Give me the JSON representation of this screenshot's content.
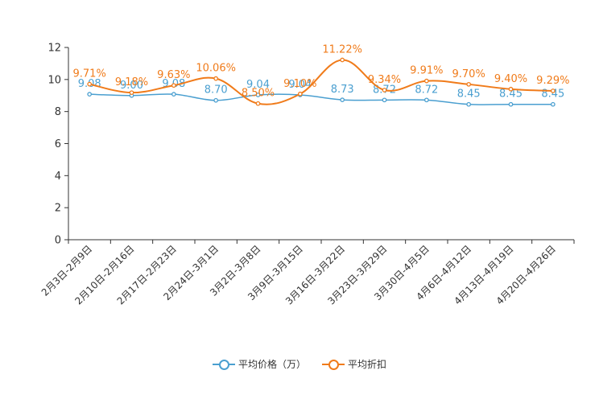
{
  "chart_data": {
    "type": "line",
    "title": "",
    "xlabel": "",
    "ylabel": "",
    "ylim": [
      0,
      12
    ],
    "yticks": [
      0,
      2,
      4,
      6,
      8,
      10,
      12
    ],
    "categories": [
      "2月3日-2月9日",
      "2月10日-2月16日",
      "2月17日-2月23日",
      "2月24日-3月1日",
      "3月2日-3月8日",
      "3月9日-3月15日",
      "3月16日-3月22日",
      "3月23日-3月29日",
      "3月30日-4月5日",
      "4月6日-4月12日",
      "4月13日-4月19日",
      "4月20日-4月26日"
    ],
    "series": [
      {
        "name": "平均价格（万）",
        "color": "#4a9fd0",
        "values": [
          9.08,
          9.0,
          9.08,
          8.7,
          9.04,
          9.04,
          8.73,
          8.72,
          8.72,
          8.45,
          8.45,
          8.45
        ],
        "labels": [
          "9.08",
          "9.00",
          "9.08",
          "8.70",
          "9.04",
          "9.04",
          "8.73",
          "8.72",
          "8.72",
          "8.45",
          "8.45",
          "8.45"
        ]
      },
      {
        "name": "平均折扣",
        "color": "#f07b1a",
        "values": [
          9.71,
          9.18,
          9.63,
          10.06,
          8.5,
          9.1,
          11.22,
          9.34,
          9.91,
          9.7,
          9.4,
          9.29
        ],
        "labels": [
          "9.71%",
          "9.18%",
          "9.63%",
          "10.06%",
          "8.50%",
          "9.10%",
          "11.22%",
          "9.34%",
          "9.91%",
          "9.70%",
          "9.40%",
          "9.29%"
        ]
      }
    ],
    "legend_position": "bottom-center"
  }
}
